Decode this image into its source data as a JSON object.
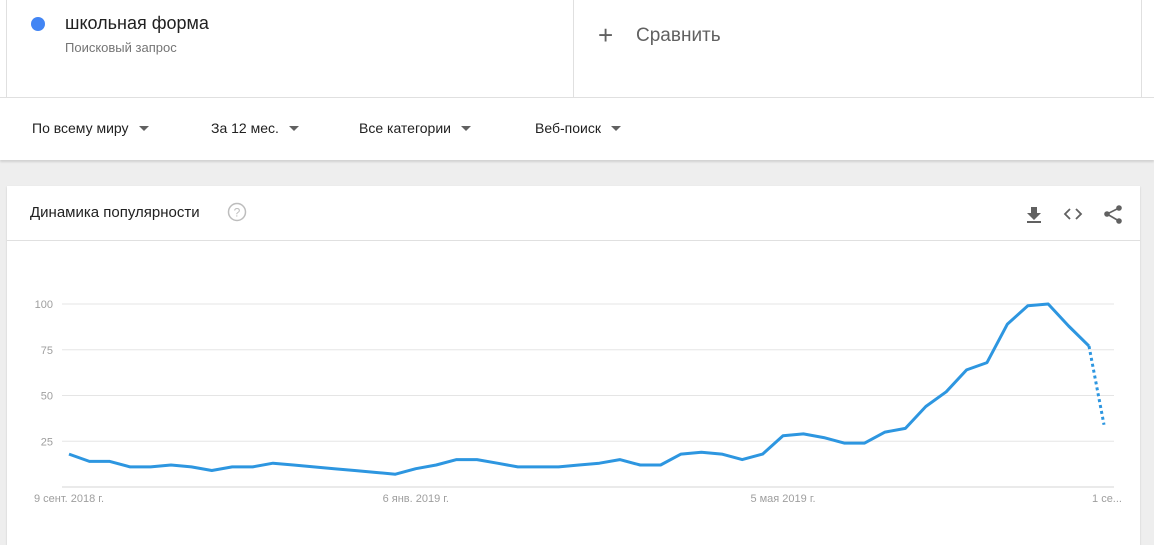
{
  "term": {
    "name": "школьная форма",
    "type_label": "Поисковый запрос",
    "color": "#4285f4"
  },
  "compare": {
    "plus": "+",
    "label": "Сравнить"
  },
  "filters": {
    "region": "По всему миру",
    "period": "За 12 мес.",
    "category": "Все категории",
    "search_type": "Веб-поиск"
  },
  "card": {
    "title": "Динамика популярности",
    "icons": [
      "help-icon",
      "download-icon",
      "embed-icon",
      "share-icon"
    ]
  },
  "chart_data": {
    "type": "line",
    "y_ticks": [
      "100",
      "75",
      "50",
      "25"
    ],
    "x_labels": [
      "9 сент. 2018 г.",
      "6 янв. 2019 г.",
      "5 мая 2019 г.",
      "1 се..."
    ],
    "ylim": [
      0,
      100
    ],
    "grid": true,
    "line_color": "#2d96e0",
    "series": [
      {
        "values": [
          18,
          14,
          14,
          11,
          11,
          12,
          11,
          9,
          11,
          11,
          13,
          12,
          11,
          10,
          9,
          8,
          7,
          10,
          12,
          15,
          15,
          13,
          11,
          11,
          11,
          12,
          13,
          15,
          12,
          12,
          18,
          19,
          18,
          15,
          18,
          28,
          29,
          27,
          24,
          24,
          30,
          32,
          44,
          52,
          64,
          68,
          89,
          99,
          100,
          88,
          77
        ]
      }
    ],
    "partial_last_segment": true,
    "partial_end_value": 34
  }
}
